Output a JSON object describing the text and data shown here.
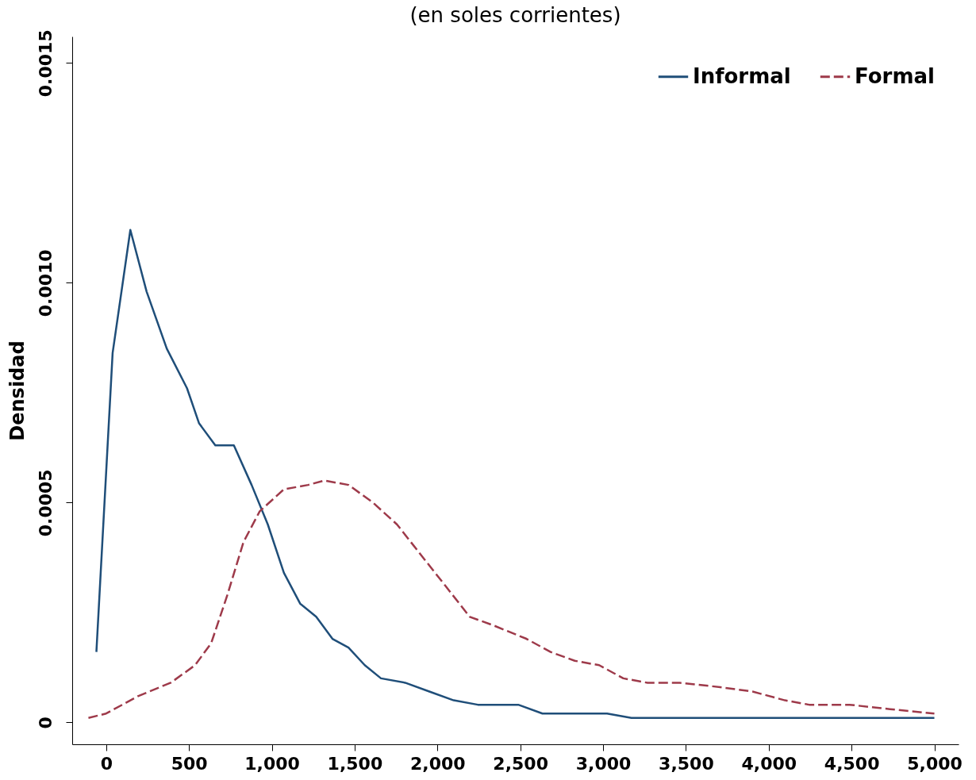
{
  "chart_data": {
    "type": "line",
    "title": "(en soles corrientes)",
    "ylabel": "Densidad",
    "x": [
      -59,
      39,
      146,
      244,
      366,
      488,
      561,
      659,
      771,
      878,
      976,
      1073,
      1171,
      1268,
      1366,
      1463,
      1561,
      1659,
      1805,
      1951,
      2098,
      2244,
      2488,
      2634,
      3024,
      3171,
      3610,
      3659,
      5000
    ],
    "series": [
      {
        "name": "Informal",
        "color": "#1f4e79",
        "line_style": "solid",
        "values": [
          0.00016,
          0.00084,
          0.00112,
          0.00098,
          0.00085,
          0.00076,
          0.00068,
          0.00063,
          0.00063,
          0.00054,
          0.00045,
          0.00034,
          0.00027,
          0.00024,
          0.00019,
          0.00017,
          0.00013,
          0.0001,
          9e-05,
          7e-05,
          5e-05,
          4e-05,
          4e-05,
          2e-05,
          2e-05,
          1e-05,
          1e-05,
          1e-05,
          1e-05
        ]
      },
      {
        "name": "Formal",
        "color": "#9e3a4a",
        "line_style": "dashed",
        "x": [
          -107,
          0,
          195,
          390,
          537,
          634,
          732,
          829,
          927,
          1073,
          1220,
          1317,
          1463,
          1610,
          1756,
          1902,
          2049,
          2195,
          2341,
          2537,
          2683,
          2829,
          2976,
          3122,
          3268,
          3463,
          3707,
          3902,
          4098,
          4244,
          4488,
          4732,
          5000
        ],
        "values": [
          1e-05,
          2e-05,
          6e-05,
          9e-05,
          0.00013,
          0.00018,
          0.00029,
          0.00041,
          0.00048,
          0.00053,
          0.00054,
          0.00055,
          0.00054,
          0.0005,
          0.00045,
          0.00038,
          0.00031,
          0.00024,
          0.00022,
          0.00019,
          0.00016,
          0.00014,
          0.00013,
          0.0001,
          9e-05,
          9e-05,
          8e-05,
          7e-05,
          5e-05,
          4e-05,
          4e-05,
          3e-05,
          2e-05
        ]
      }
    ],
    "xlim": [
      -205,
      5146
    ],
    "ylim": [
      -5e-05,
      0.00156
    ],
    "xticks": [
      0,
      500,
      {
        "value": 1000,
        "label": "1,000"
      },
      {
        "value": 1500,
        "label": "1,500"
      },
      {
        "value": 2000,
        "label": "2,000"
      },
      {
        "value": 2500,
        "label": "2,500"
      },
      {
        "value": 3000,
        "label": "3,000"
      },
      {
        "value": 3500,
        "label": "3,500"
      },
      {
        "value": 4000,
        "label": "4,000"
      },
      {
        "value": 4500,
        "label": "4,500"
      },
      {
        "value": 5000,
        "label": "5,000"
      }
    ],
    "yticks": [
      0,
      0.0005,
      {
        "value": 0.001,
        "label": "0.0010"
      },
      0.0015
    ],
    "legend": "top right",
    "grid": false
  }
}
